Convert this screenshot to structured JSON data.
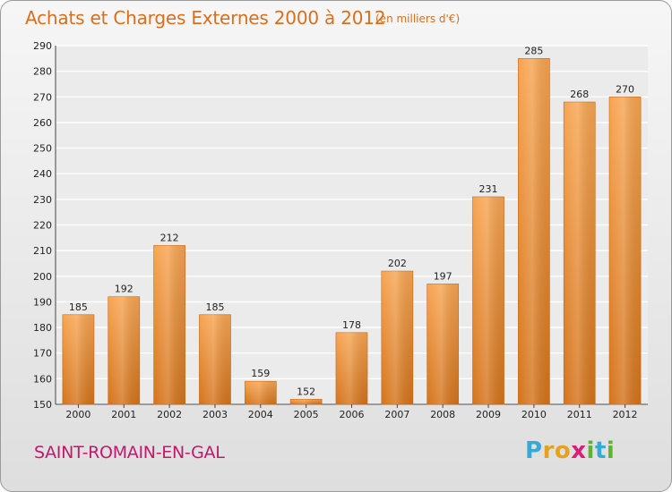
{
  "header": {
    "title": "Achats et Charges Externes 2000 à 2012",
    "subtitle": "(en milliers d'€)"
  },
  "footer": {
    "commune": "SAINT-ROMAIN-EN-GAL",
    "logo_letters": [
      "P",
      "r",
      "o",
      "x",
      "i",
      "t",
      "i"
    ],
    "logo_colors": [
      "#3aa7d9",
      "#e6a21f",
      "#e6a21f",
      "#d6207a",
      "#5cb531",
      "#3aa7d9",
      "#5cb531"
    ]
  },
  "colors": {
    "title": "#d86f1d",
    "commune": "#c2186d",
    "bar_light": "#f7a552",
    "bar_dark": "#d4741c"
  },
  "chart_data": {
    "type": "bar",
    "categories": [
      "2000",
      "2001",
      "2002",
      "2003",
      "2004",
      "2005",
      "2006",
      "2007",
      "2008",
      "2009",
      "2010",
      "2011",
      "2012"
    ],
    "values": [
      185,
      192,
      212,
      185,
      159,
      152,
      178,
      202,
      197,
      231,
      285,
      268,
      270
    ],
    "title": "Achats et Charges Externes 2000 à 2012",
    "ylim": [
      150,
      290
    ],
    "yticks": [
      150,
      160,
      170,
      180,
      190,
      200,
      210,
      220,
      230,
      240,
      250,
      260,
      270,
      280,
      290
    ],
    "grid": true,
    "legend": "none"
  }
}
